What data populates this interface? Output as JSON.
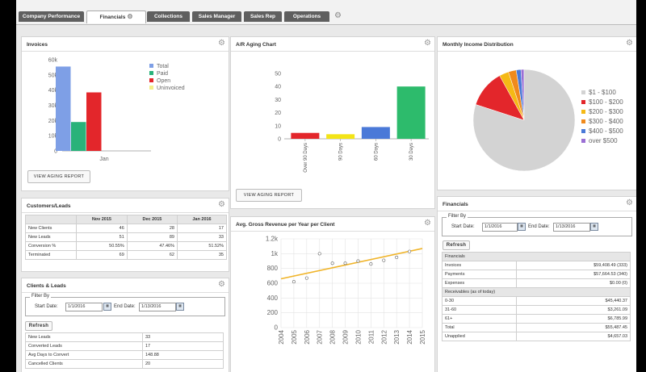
{
  "tabs": [
    {
      "label": "Company Performance"
    },
    {
      "label": "Financials"
    },
    {
      "label": "Collections"
    },
    {
      "label": "Sales Manager"
    },
    {
      "label": "Sales Rep"
    },
    {
      "label": "Operations"
    }
  ],
  "invoices": {
    "title": "Invoices",
    "button": "VIEW AGING REPORT",
    "chart_data": {
      "type": "bar",
      "categories": [
        "Jan"
      ],
      "ylim": [
        0,
        60000
      ],
      "yticks": [
        "0",
        "10k",
        "20k",
        "30k",
        "40k",
        "50k",
        "60k"
      ],
      "series": [
        {
          "name": "Total",
          "values": [
            55500
          ],
          "color": "#7e9fe6"
        },
        {
          "name": "Paid",
          "values": [
            19000
          ],
          "color": "#29b27a"
        },
        {
          "name": "Open",
          "values": [
            38500
          ],
          "color": "#e3262b"
        },
        {
          "name": "Uninvoiced",
          "values": [
            0
          ],
          "color": "#f3ef89"
        }
      ]
    }
  },
  "ar_aging": {
    "title": "A/R Aging Chart",
    "button": "VIEW AGING REPORT",
    "chart_data": {
      "type": "bar",
      "categories": [
        "Over 90 Days",
        "90 Days",
        "60 Days",
        "30 Days"
      ],
      "values": [
        4500,
        3500,
        9000,
        40000
      ],
      "colors": [
        "#e3262b",
        "#f3e417",
        "#4a79d8",
        "#2dbb6c"
      ],
      "ylim": [
        0,
        50000
      ],
      "yticks": [
        "0",
        "10",
        "20",
        "30",
        "40",
        "50"
      ]
    }
  },
  "income": {
    "title": "Monthly Income Distribution",
    "chart_data": {
      "type": "pie",
      "labels": [
        "$1 - $100",
        "$100 - $200",
        "$200 - $300",
        "$300 - $400",
        "$400 - $500",
        "over $500"
      ],
      "values": [
        80,
        12,
        3,
        2.5,
        1.5,
        1
      ],
      "colors": [
        "#d3d3d3",
        "#e3262b",
        "#f5b915",
        "#f08a1c",
        "#4a79d8",
        "#9b6fd4"
      ]
    }
  },
  "customers": {
    "title": "Customers/Leads",
    "headers": [
      "",
      "Nov 2015",
      "Dec 2015",
      "Jan 2016"
    ],
    "rows": [
      [
        "New Clients",
        "46",
        "28",
        "17"
      ],
      [
        "New Leads",
        "51",
        "89",
        "33"
      ],
      [
        "Conversion %",
        "50.55%",
        "47.46%",
        "51.52%"
      ],
      [
        "Terminated",
        "69",
        "62",
        "35"
      ]
    ]
  },
  "clients_leads": {
    "title": "Clients & Leads",
    "filter_legend": "Filter By",
    "start_label": "Start Date:",
    "start_value": "1/1/2016",
    "end_label": "End Date:",
    "end_value": "1/13/2016",
    "refresh": "Refresh",
    "rows": [
      [
        "New Leads",
        "33"
      ],
      [
        "Converted Leads",
        "17"
      ],
      [
        "Avg Days to Convert",
        "148.88"
      ],
      [
        "Cancelled Clients",
        "20"
      ]
    ]
  },
  "gross_revenue": {
    "title": "Avg. Gross Revenue per Year per Client",
    "chart_data": {
      "type": "scatter",
      "x": [
        2005,
        2006,
        2007,
        2008,
        2009,
        2010,
        2011,
        2012,
        2013,
        2014
      ],
      "y": [
        620,
        670,
        1000,
        870,
        870,
        900,
        860,
        910,
        950,
        1030
      ],
      "trend": {
        "x": [
          2004,
          2015
        ],
        "y": [
          660,
          1070
        ]
      },
      "xticks": [
        "2004",
        "2005",
        "2006",
        "2007",
        "2008",
        "2009",
        "2010",
        "2011",
        "2012",
        "2013",
        "2014",
        "2015"
      ],
      "yticks": [
        "0",
        "200",
        "400",
        "600",
        "800",
        "1k",
        "1.2k"
      ],
      "ylim": [
        0,
        1200
      ],
      "trend_color": "#f0b429"
    }
  },
  "financials": {
    "title": "Financials",
    "filter_legend": "Filter By",
    "start_label": "Start Date:",
    "start_value": "1/1/2016",
    "end_label": "End Date:",
    "end_value": "1/13/2016",
    "refresh": "Refresh",
    "section1": "Financials",
    "rows1": [
      [
        "Invoices",
        "$59,408.49 (333)"
      ],
      [
        "Payments",
        "$57,664.53 (340)"
      ],
      [
        "Expenses",
        "$0.00 (0)"
      ]
    ],
    "section2": "Receivables (as of today)",
    "rows2": [
      [
        "0-30",
        "$45,440.37"
      ],
      [
        "31-60",
        "$3,261.09"
      ],
      [
        "61+",
        "$6,785.99"
      ],
      [
        "Total",
        "$55,487.45"
      ],
      [
        "Unapplied",
        "$4,657.03"
      ]
    ]
  }
}
